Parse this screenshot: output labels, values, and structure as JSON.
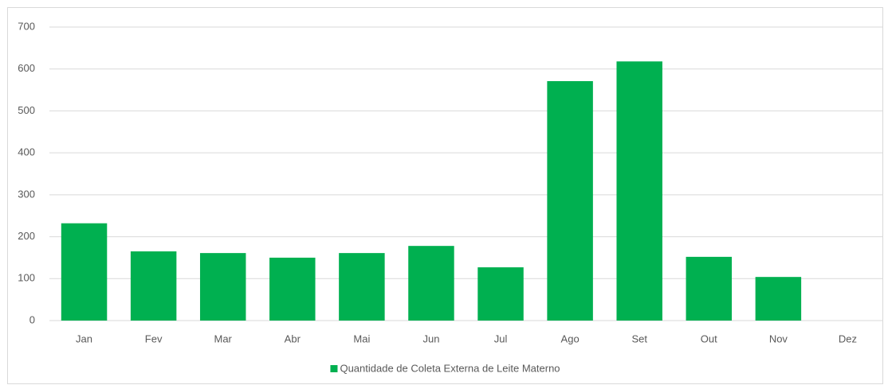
{
  "chart_data": {
    "type": "bar",
    "categories": [
      "Jan",
      "Fev",
      "Mar",
      "Abr",
      "Mai",
      "Jun",
      "Jul",
      "Ago",
      "Set",
      "Out",
      "Nov",
      "Dez"
    ],
    "series": [
      {
        "name": "Quantidade de Coleta Externa de Leite Materno",
        "color": "#00b050",
        "values": [
          232,
          165,
          161,
          150,
          161,
          178,
          127,
          571,
          618,
          152,
          104,
          null
        ]
      }
    ],
    "ylim": [
      0,
      700
    ],
    "yticks": [
      0,
      100,
      200,
      300,
      400,
      500,
      600,
      700
    ],
    "grid": true,
    "legend": "bottom"
  }
}
